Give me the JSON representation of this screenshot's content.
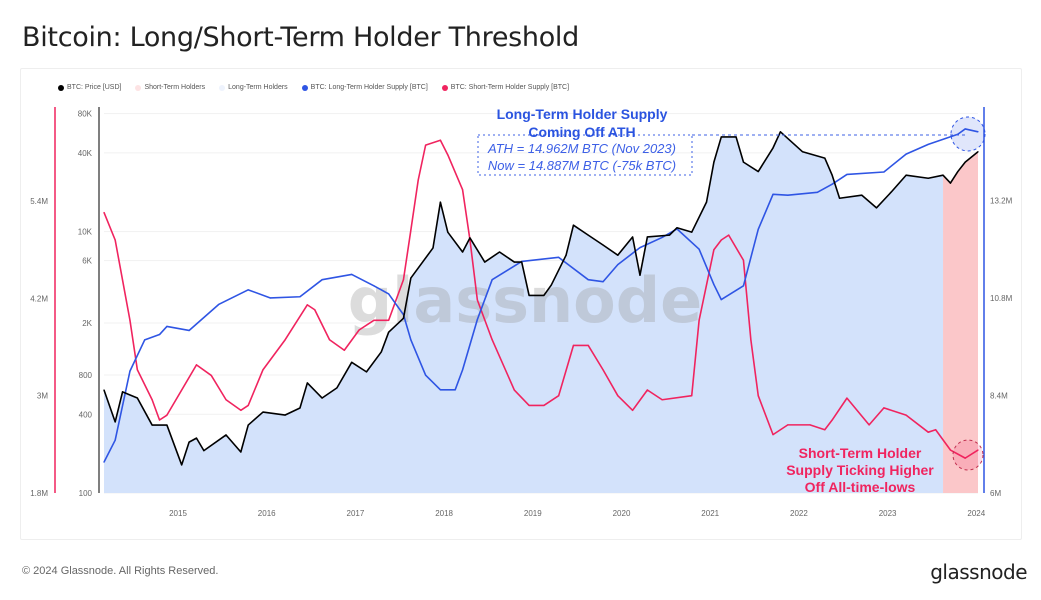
{
  "title": "Bitcoin: Long/Short-Term Holder Threshold",
  "footer": {
    "copyright": "© 2024 Glassnode. All Rights Reserved.",
    "logo": "glassnode"
  },
  "watermark": "glassnode",
  "colors": {
    "price": "#000000",
    "lth": "#2f55e4",
    "sth": "#f0245f",
    "lth_fill": "#d3e2fb",
    "sth_fill": "#fbc7c9"
  },
  "chart_data": {
    "type": "line",
    "title": "Bitcoin: Long/Short-Term Holder Threshold",
    "legend_position": "top-left",
    "legend": [
      {
        "label": "BTC: Price [USD]",
        "color": "#000000"
      },
      {
        "label": "Short-Term Holders",
        "color": "#fde3e4"
      },
      {
        "label": "Long-Term Holders",
        "color": "#eef3fd"
      },
      {
        "label": "BTC: Long-Term Holder Supply [BTC]",
        "color": "#2f55e4"
      },
      {
        "label": "BTC: Short-Term Holder Supply [BTC]",
        "color": "#f0245f"
      }
    ],
    "x_ticks": [
      "2015",
      "2016",
      "2017",
      "2018",
      "2019",
      "2020",
      "2021",
      "2022",
      "2023",
      "2024"
    ],
    "x_range": [
      "2014-03",
      "2024-01"
    ],
    "y_price": {
      "scale": "log",
      "range": [
        100,
        80000
      ],
      "ticks": [
        "80K",
        "40K",
        "10K",
        "6K",
        "2K",
        "800",
        "400",
        "100"
      ],
      "tick_values": [
        80000,
        40000,
        10000,
        6000,
        2000,
        800,
        400,
        100
      ]
    },
    "y_sth": {
      "scale": "linear",
      "range": [
        1.8,
        6.56
      ],
      "unit": "M",
      "ticks": [
        "5.4M",
        "4.2M",
        "3M",
        "1.8M"
      ],
      "tick_values": [
        5.4,
        4.2,
        3,
        1.8
      ]
    },
    "y_lth": {
      "scale": "linear",
      "range": [
        6,
        15.5
      ],
      "unit": "M",
      "ticks": [
        "13.2M",
        "10.8M",
        "8.4M",
        "6M"
      ],
      "tick_values": [
        13.2,
        10.8,
        8.4,
        6
      ]
    },
    "grid": true,
    "sth_regime_start": "2023-08",
    "series": [
      {
        "name": "BTC: Price [USD]",
        "axis": "price",
        "points": [
          [
            "2014-03",
            614
          ],
          [
            "2014-04",
            350
          ],
          [
            "2014-05",
            594
          ],
          [
            "2014-07",
            533
          ],
          [
            "2014-09",
            331
          ],
          [
            "2014-11",
            331
          ],
          [
            "2015-01",
            164
          ],
          [
            "2015-02",
            245
          ],
          [
            "2015-03",
            263
          ],
          [
            "2015-04",
            211
          ],
          [
            "2015-07",
            278
          ],
          [
            "2015-09",
            206
          ],
          [
            "2015-10",
            331
          ],
          [
            "2015-12",
            416
          ],
          [
            "2016-03",
            395
          ],
          [
            "2016-05",
            447
          ],
          [
            "2016-06",
            695
          ],
          [
            "2016-08",
            533
          ],
          [
            "2016-10",
            637
          ],
          [
            "2016-12",
            1000
          ],
          [
            "2017-02",
            845
          ],
          [
            "2017-04",
            1200
          ],
          [
            "2017-05",
            1700
          ],
          [
            "2017-07",
            2170
          ],
          [
            "2017-08",
            4410
          ],
          [
            "2017-11",
            7500
          ],
          [
            "2017-12",
            16800
          ],
          [
            "2018-01",
            9900
          ],
          [
            "2018-03",
            6980
          ],
          [
            "2018-04",
            8950
          ],
          [
            "2018-06",
            5850
          ],
          [
            "2018-08",
            6980
          ],
          [
            "2018-10",
            5850
          ],
          [
            "2018-11",
            5850
          ],
          [
            "2018-12",
            3250
          ],
          [
            "2019-02",
            3250
          ],
          [
            "2019-03",
            3900
          ],
          [
            "2019-05",
            6600
          ],
          [
            "2019-06",
            11200
          ],
          [
            "2019-08",
            9400
          ],
          [
            "2019-10",
            7900
          ],
          [
            "2019-12",
            6600
          ],
          [
            "2020-02",
            9100
          ],
          [
            "2020-03",
            4640
          ],
          [
            "2020-04",
            9100
          ],
          [
            "2020-07",
            9400
          ],
          [
            "2020-08",
            10700
          ],
          [
            "2020-10",
            9900
          ],
          [
            "2020-12",
            16800
          ],
          [
            "2021-01",
            34000
          ],
          [
            "2021-02",
            53000
          ],
          [
            "2021-04",
            53000
          ],
          [
            "2021-05",
            34000
          ],
          [
            "2021-07",
            28800
          ],
          [
            "2021-09",
            43700
          ],
          [
            "2021-10",
            58000
          ],
          [
            "2022-01",
            40800
          ],
          [
            "2022-04",
            36500
          ],
          [
            "2022-05",
            27000
          ],
          [
            "2022-06",
            18000
          ],
          [
            "2022-09",
            19000
          ],
          [
            "2022-11",
            15200
          ],
          [
            "2023-01",
            20100
          ],
          [
            "2023-03",
            27000
          ],
          [
            "2023-06",
            25600
          ],
          [
            "2023-08",
            27000
          ],
          [
            "2023-09",
            23500
          ],
          [
            "2023-10",
            28800
          ],
          [
            "2023-11",
            34000
          ],
          [
            "2024-01",
            40800
          ]
        ]
      },
      {
        "name": "BTC: Long-Term Holder Supply [BTC]",
        "axis": "lth",
        "unit": "M BTC",
        "points": [
          [
            "2014-03",
            6.76
          ],
          [
            "2014-04",
            7.3
          ],
          [
            "2014-06",
            9.0
          ],
          [
            "2014-08",
            9.77
          ],
          [
            "2014-10",
            9.9
          ],
          [
            "2014-11",
            10.1
          ],
          [
            "2015-02",
            10.0
          ],
          [
            "2015-06",
            10.64
          ],
          [
            "2015-10",
            11.0
          ],
          [
            "2016-01",
            10.8
          ],
          [
            "2016-05",
            10.83
          ],
          [
            "2016-08",
            11.25
          ],
          [
            "2016-12",
            11.38
          ],
          [
            "2017-03",
            11.1
          ],
          [
            "2017-05",
            10.9
          ],
          [
            "2017-07",
            10.39
          ],
          [
            "2017-08",
            9.77
          ],
          [
            "2017-10",
            8.9
          ],
          [
            "2017-12",
            8.54
          ],
          [
            "2018-02",
            8.54
          ],
          [
            "2018-03",
            9.03
          ],
          [
            "2018-05",
            10.27
          ],
          [
            "2018-07",
            11.25
          ],
          [
            "2018-11",
            11.7
          ],
          [
            "2019-04",
            11.8
          ],
          [
            "2019-08",
            11.25
          ],
          [
            "2019-10",
            11.2
          ],
          [
            "2019-12",
            11.62
          ],
          [
            "2020-03",
            12.04
          ],
          [
            "2020-06",
            12.29
          ],
          [
            "2020-08",
            12.5
          ],
          [
            "2020-11",
            12.0
          ],
          [
            "2021-01",
            11.13
          ],
          [
            "2021-02",
            10.76
          ],
          [
            "2021-05",
            11.1
          ],
          [
            "2021-07",
            12.49
          ],
          [
            "2021-09",
            13.35
          ],
          [
            "2021-11",
            13.33
          ],
          [
            "2022-03",
            13.4
          ],
          [
            "2022-05",
            13.6
          ],
          [
            "2022-07",
            13.84
          ],
          [
            "2022-12",
            13.9
          ],
          [
            "2023-03",
            14.34
          ],
          [
            "2023-06",
            14.58
          ],
          [
            "2023-10",
            14.83
          ],
          [
            "2023-11",
            14.96
          ],
          [
            "2024-01",
            14.89
          ]
        ]
      },
      {
        "name": "BTC: Short-Term Holder Supply [BTC]",
        "axis": "sth",
        "unit": "M BTC",
        "points": [
          [
            "2014-03",
            5.26
          ],
          [
            "2014-04",
            4.92
          ],
          [
            "2014-06",
            3.93
          ],
          [
            "2014-07",
            3.32
          ],
          [
            "2014-09",
            2.95
          ],
          [
            "2014-10",
            2.7
          ],
          [
            "2014-11",
            2.76
          ],
          [
            "2015-03",
            3.38
          ],
          [
            "2015-05",
            3.25
          ],
          [
            "2015-07",
            2.95
          ],
          [
            "2015-09",
            2.82
          ],
          [
            "2015-10",
            2.88
          ],
          [
            "2015-12",
            3.32
          ],
          [
            "2016-03",
            3.69
          ],
          [
            "2016-06",
            4.12
          ],
          [
            "2016-07",
            4.06
          ],
          [
            "2016-09",
            3.69
          ],
          [
            "2016-11",
            3.56
          ],
          [
            "2017-01",
            3.81
          ],
          [
            "2017-03",
            3.93
          ],
          [
            "2017-05",
            3.93
          ],
          [
            "2017-07",
            4.43
          ],
          [
            "2017-08",
            5.04
          ],
          [
            "2017-09",
            5.66
          ],
          [
            "2017-10",
            6.09
          ],
          [
            "2017-12",
            6.15
          ],
          [
            "2018-01",
            5.97
          ],
          [
            "2018-03",
            5.54
          ],
          [
            "2018-04",
            4.92
          ],
          [
            "2018-05",
            4.18
          ],
          [
            "2018-07",
            3.69
          ],
          [
            "2018-10",
            3.07
          ],
          [
            "2018-12",
            2.88
          ],
          [
            "2019-02",
            2.88
          ],
          [
            "2019-04",
            3.0
          ],
          [
            "2019-06",
            3.62
          ],
          [
            "2019-08",
            3.62
          ],
          [
            "2019-10",
            3.32
          ],
          [
            "2019-12",
            3.0
          ],
          [
            "2020-02",
            2.82
          ],
          [
            "2020-04",
            3.07
          ],
          [
            "2020-06",
            2.95
          ],
          [
            "2020-10",
            3.0
          ],
          [
            "2020-11",
            3.93
          ],
          [
            "2021-01",
            4.8
          ],
          [
            "2021-02",
            4.92
          ],
          [
            "2021-03",
            4.98
          ],
          [
            "2021-05",
            4.67
          ],
          [
            "2021-06",
            3.69
          ],
          [
            "2021-07",
            3.0
          ],
          [
            "2021-09",
            2.52
          ],
          [
            "2021-11",
            2.64
          ],
          [
            "2022-02",
            2.64
          ],
          [
            "2022-04",
            2.58
          ],
          [
            "2022-05",
            2.7
          ],
          [
            "2022-07",
            2.97
          ],
          [
            "2022-10",
            2.64
          ],
          [
            "2022-12",
            2.85
          ],
          [
            "2023-03",
            2.76
          ],
          [
            "2023-06",
            2.55
          ],
          [
            "2023-07",
            2.58
          ],
          [
            "2023-09",
            2.33
          ],
          [
            "2023-11",
            2.23
          ],
          [
            "2024-01",
            2.33
          ]
        ]
      }
    ],
    "annotations": {
      "lth": [
        "Long-Term Holder Supply",
        "Coming Off ATH",
        "ATH = 14.962M BTC (Nov 2023)",
        "Now = 14.887M BTC (-75k BTC)"
      ],
      "sth": [
        "Short-Term Holder",
        "Supply Ticking Higher",
        "Off All-time-lows"
      ]
    }
  }
}
